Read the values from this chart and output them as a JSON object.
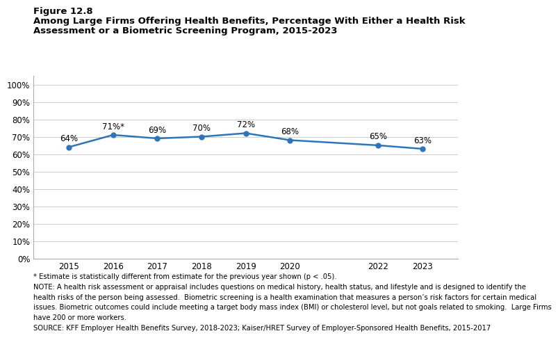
{
  "figure_label": "Figure 12.8",
  "title_line1": "Among Large Firms Offering Health Benefits, Percentage With Either a Health Risk",
  "title_line2": "Assessment or a Biometric Screening Program, 2015-2023",
  "years": [
    2015,
    2016,
    2017,
    2018,
    2019,
    2020,
    2022,
    2023
  ],
  "values": [
    0.64,
    0.71,
    0.69,
    0.7,
    0.72,
    0.68,
    0.65,
    0.63
  ],
  "labels": [
    "64%",
    "71%*",
    "69%",
    "70%",
    "72%",
    "68%",
    "65%",
    "63%"
  ],
  "line_color": "#2E75B6",
  "marker": "o",
  "marker_size": 5,
  "ylim": [
    0,
    1.05
  ],
  "yticks": [
    0,
    0.1,
    0.2,
    0.3,
    0.4,
    0.5,
    0.6,
    0.7,
    0.8,
    0.9,
    1.0
  ],
  "ytick_labels": [
    "0%",
    "10%",
    "20%",
    "30%",
    "40%",
    "50%",
    "60%",
    "70%",
    "80%",
    "90%",
    "100%"
  ],
  "footnote1": "* Estimate is statistically different from estimate for the previous year shown (p < .05).",
  "footnote2": "NOTE: A health risk assessment or appraisal includes questions on medical history, health status, and lifestyle and is designed to identify the",
  "footnote3": "health risks of the person being assessed.  Biometric screening is a health examination that measures a person’s risk factors for certain medical",
  "footnote4": "issues. Biometric outcomes could include meeting a target body mass index (BMI) or cholesterol level, but not goals related to smoking.  Large Firms",
  "footnote5": "have 200 or more workers.",
  "footnote6": "SOURCE: KFF Employer Health Benefits Survey, 2018-2023; Kaiser/HRET Survey of Employer-Sponsored Health Benefits, 2015-2017",
  "background_color": "#ffffff"
}
